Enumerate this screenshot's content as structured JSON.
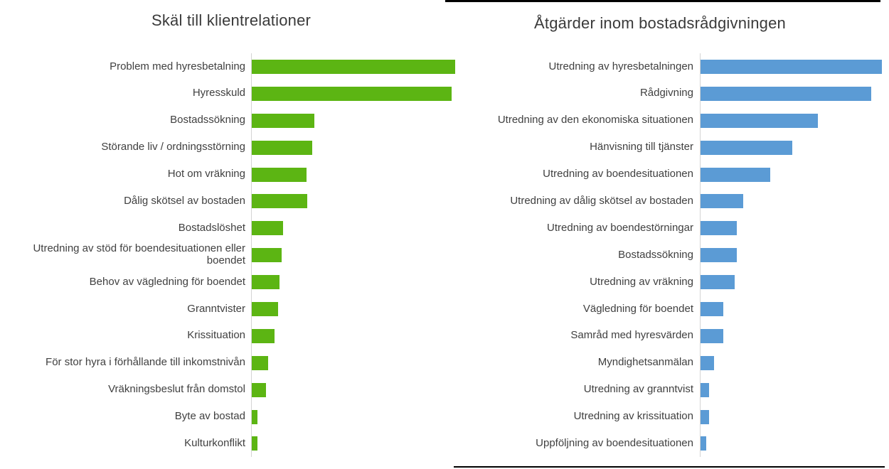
{
  "page": {
    "background_hex": "#ffffff",
    "text_color_hex": "#404040",
    "axis_line_color_hex": "#d4d4d4",
    "decorations": {
      "right_chart_top_border_color_hex": "#000000",
      "right_chart_bottom_border_color_hex": "#000000"
    }
  },
  "chart_data": [
    {
      "type": "bar",
      "orientation": "horizontal",
      "title": "Skäl till klientrelationer",
      "bar_color_hex": "#5cb513",
      "xlabel": "",
      "ylabel": "",
      "value_axis_labels_shown": false,
      "gridlines": false,
      "legend": "none",
      "units": "pixel lengths measured from screenshot (no numeric axis shown)",
      "categories": [
        "Problem med hyresbetalning",
        "Hyresskuld",
        "Bostadssökning",
        "Störande liv / ordningsstörning",
        "Hot om vräkning",
        "Dålig skötsel av bostaden",
        "Bostadslöshet",
        "Utredning av stöd för boendesituationen eller boendet",
        "Behov av vägledning för boendet",
        "Granntvister",
        "Krissituation",
        "För stor hyra i förhållande till inkomstnivån",
        "Vräkningsbeslut från domstol",
        "Byte av bostad",
        "Kulturkonflikt"
      ],
      "values": [
        286,
        281,
        88,
        85,
        77,
        78,
        44,
        42,
        39,
        37,
        32,
        23,
        20,
        8,
        8
      ]
    },
    {
      "type": "bar",
      "orientation": "horizontal",
      "title": "Åtgärder inom bostadsrådgivningen",
      "bar_color_hex": "#5b9bd5",
      "xlabel": "",
      "ylabel": "",
      "value_axis_labels_shown": false,
      "gridlines": false,
      "legend": "none",
      "units": "pixel lengths measured from screenshot (no numeric axis shown)",
      "categories": [
        "Utredning av hyresbetalningen",
        "Rådgivning",
        "Utredning av den ekonomiska situationen",
        "Hänvisning till tjänster",
        "Utredning av boendesituationen",
        "Utredning av dålig skötsel av bostaden",
        "Utredning av boendestörningar",
        "Bostadssökning",
        "Utredning av vräkning",
        "Vägledning för boendet",
        "Samråd med hyresvärden",
        "Myndighetsanmälan",
        "Utredning av granntvist",
        "Utredning av krissituation",
        "Uppföljning av boendesituationen"
      ],
      "values": [
        255,
        240,
        165,
        129,
        98,
        60,
        51,
        51,
        48,
        32,
        32,
        19,
        12,
        12,
        8
      ]
    }
  ]
}
